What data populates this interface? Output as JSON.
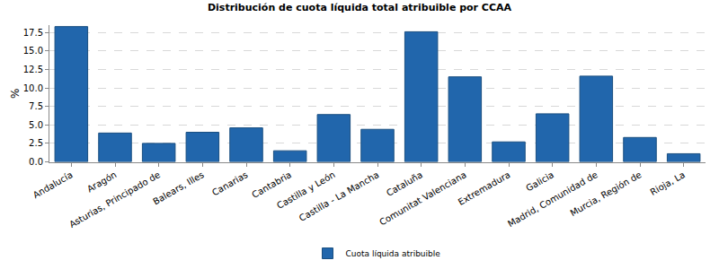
{
  "chart_data": {
    "type": "bar",
    "title": "Distribución de cuota líquida total atribuible por CCAA",
    "y_label": "%",
    "categories": [
      "Andalucía",
      "Aragón",
      "Asturias, Principado de",
      "Balears, Illes",
      "Canarias",
      "Cantabria",
      "Castilla y León",
      "Castilla - La Mancha",
      "Cataluña",
      "Comunitat Valenciana",
      "Extremadura",
      "Galicia",
      "Madrid, Comunidad de",
      "Murcia, Región de",
      "Rioja, La"
    ],
    "series": [
      {
        "name": "Cuota líquida atribuible",
        "color": "#2166ac",
        "values": [
          18.3,
          3.9,
          2.5,
          4.0,
          4.6,
          1.5,
          6.4,
          4.4,
          17.6,
          11.5,
          2.7,
          6.5,
          11.6,
          3.3,
          1.1
        ]
      }
    ],
    "ylim": [
      0,
      18.5
    ],
    "yticks": [
      {
        "value": 0,
        "label": "0.0"
      },
      2.5,
      {
        "value": 5,
        "label": "5.0"
      },
      7.5,
      {
        "value": 10,
        "label": "10.0"
      },
      12.5,
      {
        "value": 15,
        "label": "15.0"
      },
      17.5
    ],
    "grid": true,
    "legend": "bottom"
  }
}
